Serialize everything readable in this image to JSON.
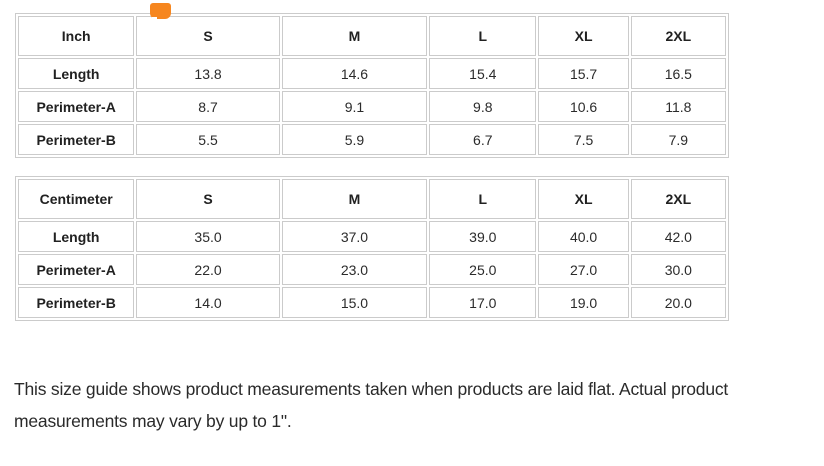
{
  "page": {
    "background_color": "#ffffff",
    "accent_orange": "#f6861f",
    "table_border_color": "#cbcbcb",
    "text_color": "#212121"
  },
  "heading_fragment": {
    "description": "bottom edge of a clipped orange heading letter",
    "color": "#f6861f"
  },
  "tables": [
    {
      "unit_header": "Inch",
      "size_headers": [
        "S",
        "M",
        "L",
        "XL",
        "2XL"
      ],
      "rows": [
        {
          "label": "Length",
          "values": [
            "13.8",
            "14.6",
            "15.4",
            "15.7",
            "16.5"
          ]
        },
        {
          "label": "Perimeter-A",
          "values": [
            "8.7",
            "9.1",
            "9.8",
            "10.6",
            "11.8"
          ]
        },
        {
          "label": "Perimeter-B",
          "values": [
            "5.5",
            "5.9",
            "6.7",
            "7.5",
            "7.9"
          ]
        }
      ]
    },
    {
      "unit_header": "Centimeter",
      "size_headers": [
        "S",
        "M",
        "L",
        "XL",
        "2XL"
      ],
      "rows": [
        {
          "label": "Length",
          "values": [
            "35.0",
            "37.0",
            "39.0",
            "40.0",
            "42.0"
          ]
        },
        {
          "label": "Perimeter-A",
          "values": [
            "22.0",
            "23.0",
            "25.0",
            "27.0",
            "30.0"
          ]
        },
        {
          "label": "Perimeter-B",
          "values": [
            "14.0",
            "15.0",
            "17.0",
            "19.0",
            "20.0"
          ]
        }
      ]
    }
  ],
  "footnote_text": "This size guide shows product measurements taken when products are laid flat. Actual product measurements may vary by up to 1\"."
}
